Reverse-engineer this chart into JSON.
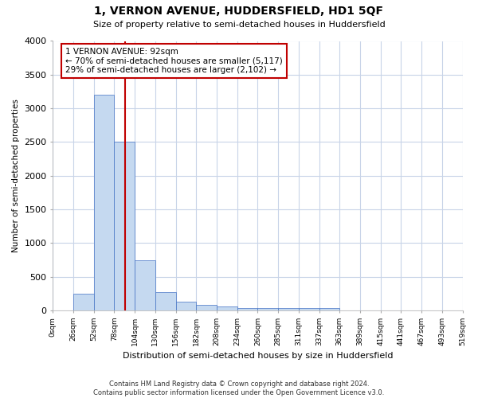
{
  "title1": "1, VERNON AVENUE, HUDDERSFIELD, HD1 5QF",
  "title2": "Size of property relative to semi-detached houses in Huddersfield",
  "xlabel": "Distribution of semi-detached houses by size in Huddersfield",
  "ylabel": "Number of semi-detached properties",
  "footnote": "Contains HM Land Registry data © Crown copyright and database right 2024.\nContains public sector information licensed under the Open Government Licence v3.0.",
  "bin_labels": [
    "0sqm",
    "26sqm",
    "52sqm",
    "78sqm",
    "104sqm",
    "130sqm",
    "156sqm",
    "182sqm",
    "208sqm",
    "234sqm",
    "260sqm",
    "285sqm",
    "311sqm",
    "337sqm",
    "363sqm",
    "389sqm",
    "415sqm",
    "441sqm",
    "467sqm",
    "493sqm",
    "519sqm"
  ],
  "bar_heights": [
    0,
    250,
    3200,
    2500,
    750,
    270,
    130,
    80,
    55,
    40,
    40,
    35,
    40,
    40,
    0,
    0,
    0,
    0,
    0,
    0
  ],
  "bar_color": "#c5d9f0",
  "bar_edge_color": "#4472c4",
  "grid_color": "#c8d4e8",
  "vline_color": "#c00000",
  "annotation_text": "1 VERNON AVENUE: 92sqm\n← 70% of semi-detached houses are smaller (5,117)\n29% of semi-detached houses are larger (2,102) →",
  "annotation_box_color": "#ffffff",
  "annotation_box_edge": "#c00000",
  "ylim": [
    0,
    4000
  ],
  "yticks": [
    0,
    500,
    1000,
    1500,
    2000,
    2500,
    3000,
    3500,
    4000
  ],
  "background_color": "#ffffff",
  "plot_bg_color": "#ffffff"
}
